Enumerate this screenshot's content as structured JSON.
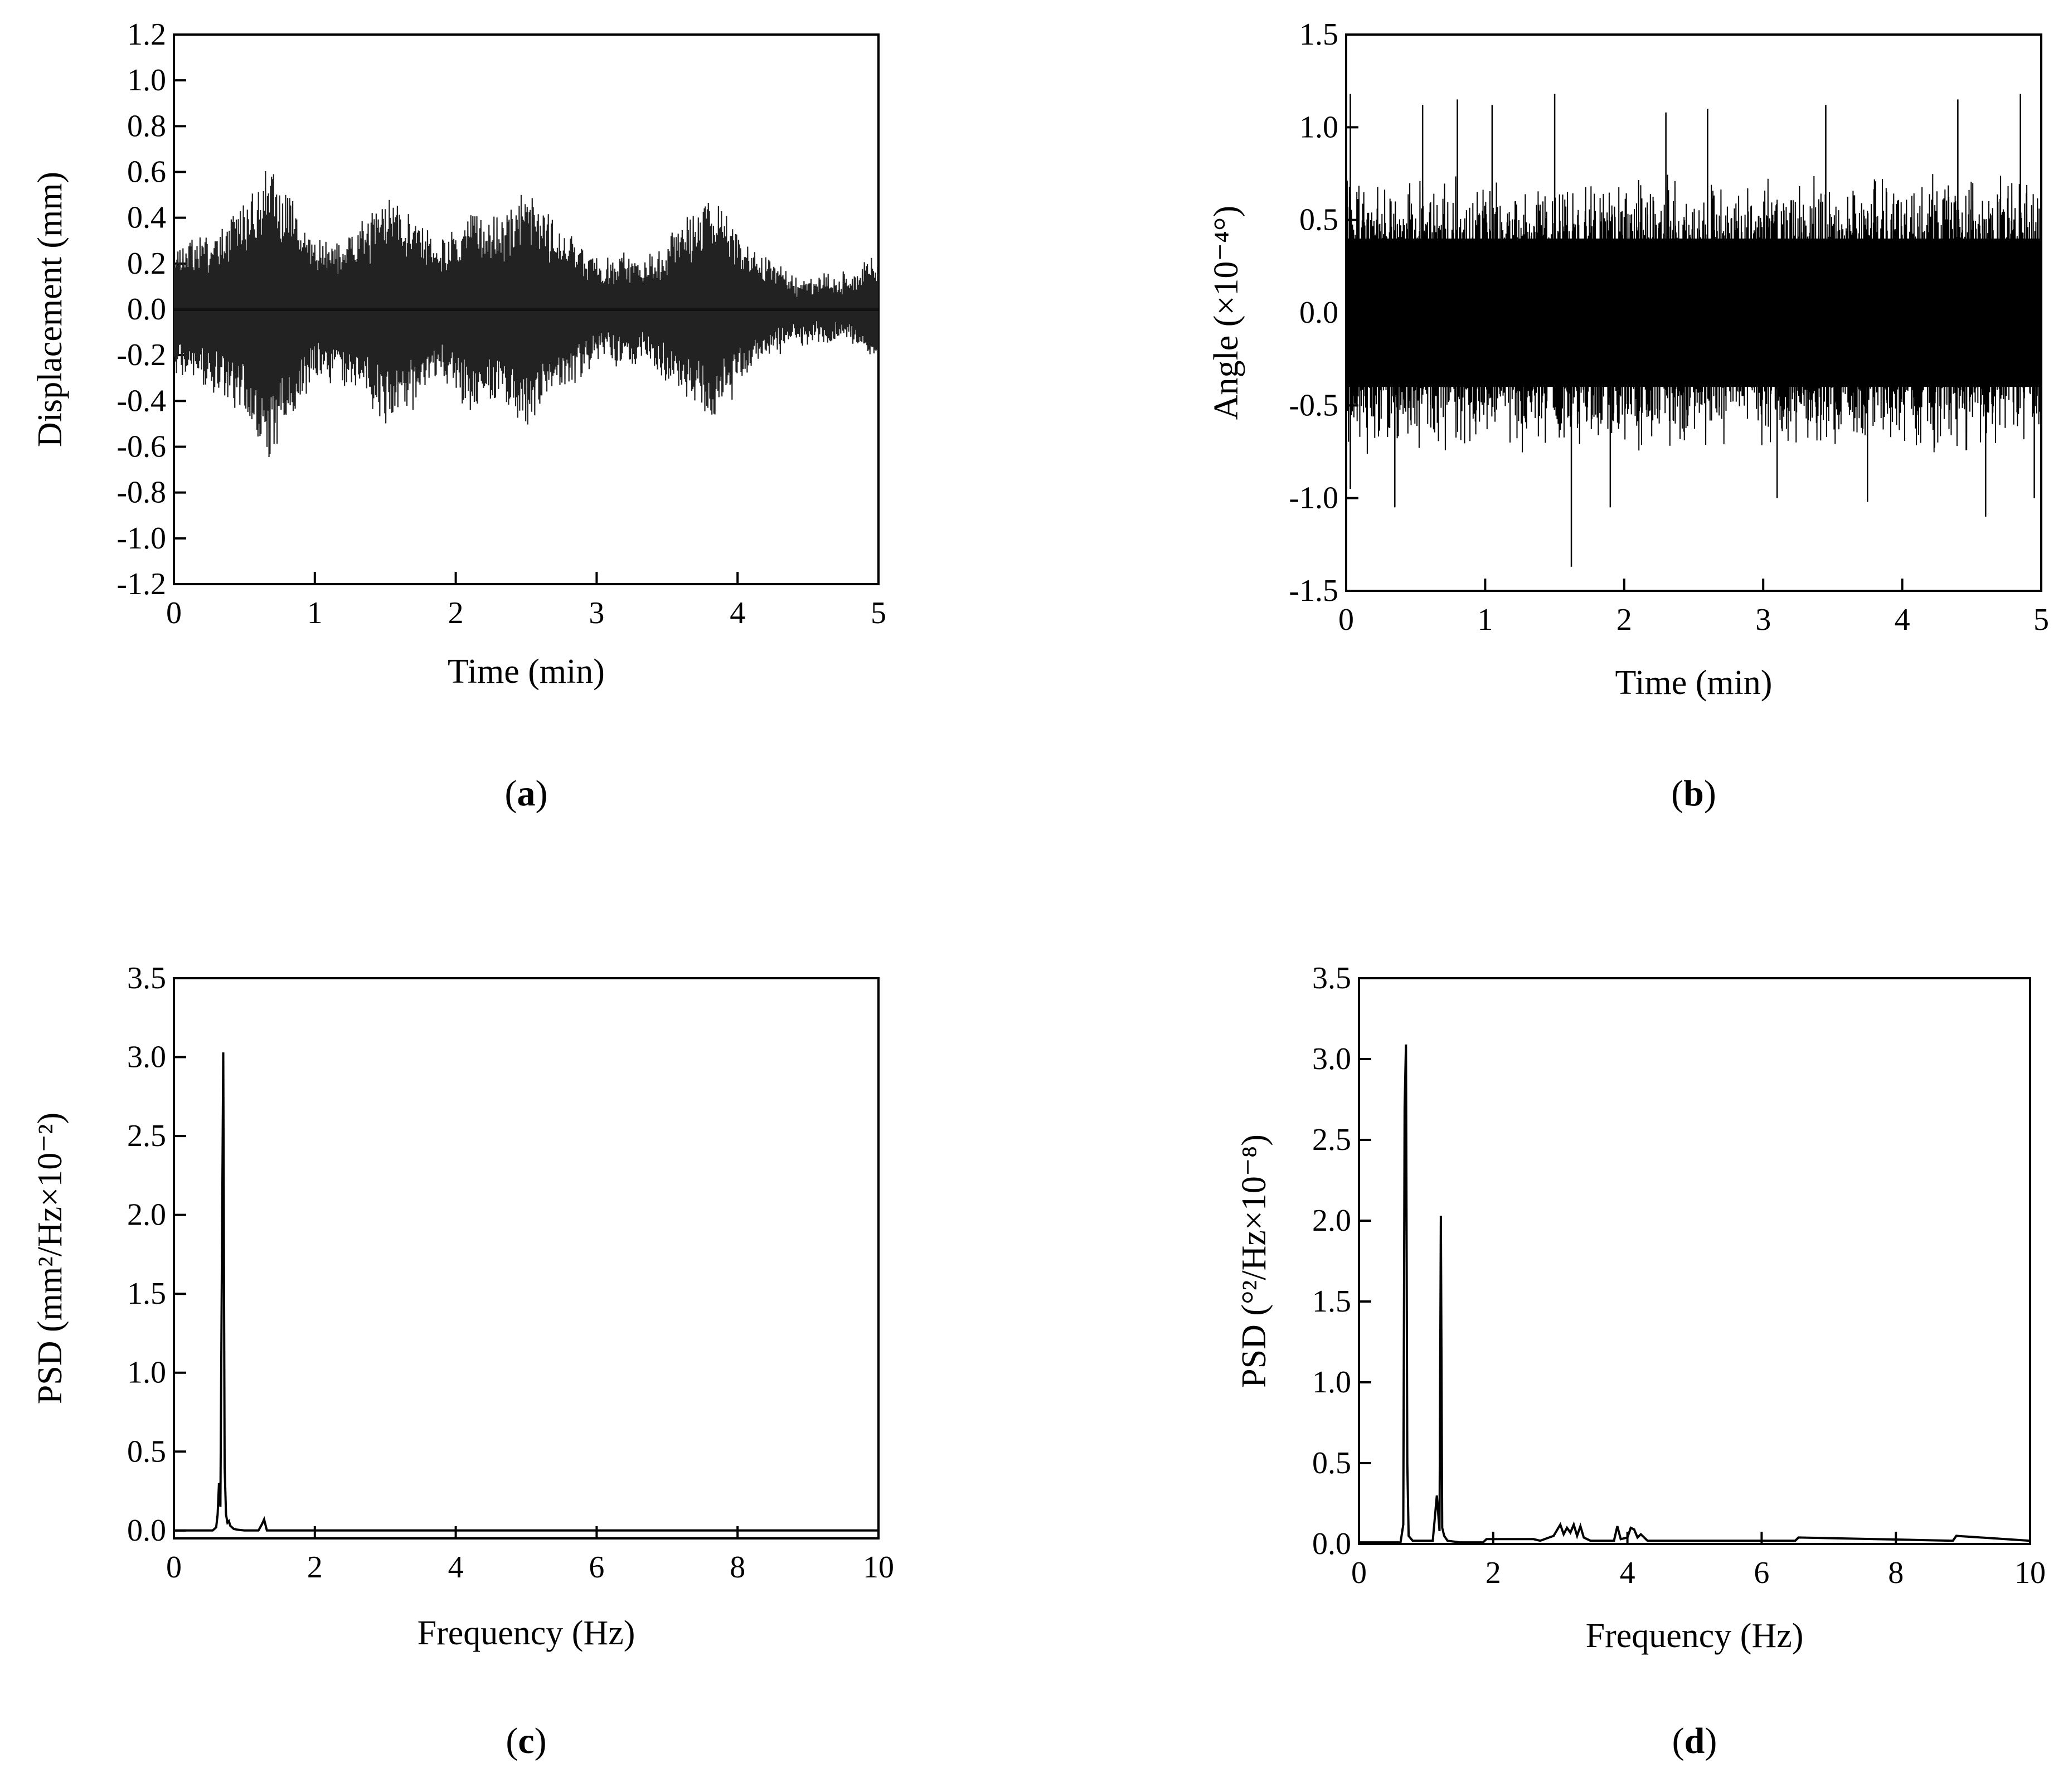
{
  "chart_data": [
    {
      "id": "a",
      "panel_label": "a",
      "type": "line",
      "xlabel": "Time (min)",
      "ylabel": "Displacement (mm)",
      "xlim": [
        0,
        5
      ],
      "ylim": [
        -1.2,
        1.2
      ],
      "xticks": [
        "0",
        "1",
        "2",
        "3",
        "4",
        "5"
      ],
      "yticks": [
        "-1.2",
        "-1.0",
        "-0.8",
        "-0.6",
        "-0.4",
        "-0.2",
        "0.0",
        "0.2",
        "0.4",
        "0.6",
        "0.8",
        "1.0",
        "1.2"
      ],
      "grid": false,
      "signal": "oscillation",
      "envelope": [
        [
          0.0,
          0.28
        ],
        [
          0.2,
          0.32
        ],
        [
          0.35,
          0.38
        ],
        [
          0.5,
          0.45
        ],
        [
          0.6,
          0.6
        ],
        [
          0.7,
          0.64
        ],
        [
          0.8,
          0.5
        ],
        [
          0.9,
          0.4
        ],
        [
          1.0,
          0.3
        ],
        [
          1.15,
          0.3
        ],
        [
          1.3,
          0.35
        ],
        [
          1.45,
          0.45
        ],
        [
          1.55,
          0.52
        ],
        [
          1.7,
          0.42
        ],
        [
          1.85,
          0.3
        ],
        [
          2.0,
          0.35
        ],
        [
          2.1,
          0.44
        ],
        [
          2.2,
          0.42
        ],
        [
          2.35,
          0.38
        ],
        [
          2.5,
          0.54
        ],
        [
          2.6,
          0.45
        ],
        [
          2.75,
          0.35
        ],
        [
          2.9,
          0.28
        ],
        [
          3.05,
          0.2
        ],
        [
          3.2,
          0.25
        ],
        [
          3.35,
          0.2
        ],
        [
          3.5,
          0.3
        ],
        [
          3.65,
          0.4
        ],
        [
          3.8,
          0.49
        ],
        [
          3.9,
          0.42
        ],
        [
          4.05,
          0.3
        ],
        [
          4.25,
          0.2
        ],
        [
          4.4,
          0.14
        ],
        [
          4.6,
          0.13
        ],
        [
          4.8,
          0.15
        ],
        [
          5.0,
          0.24
        ]
      ]
    },
    {
      "id": "b",
      "panel_label": "b",
      "type": "line",
      "xlabel": "Time (min)",
      "ylabel": "Angle (×10⁻⁴°)",
      "xlim": [
        0,
        5
      ],
      "ylim": [
        -1.5,
        1.5
      ],
      "xticks": [
        "0",
        "1",
        "2",
        "3",
        "4",
        "5"
      ],
      "yticks": [
        "-1.5",
        "-1.0",
        "-0.5",
        "0.0",
        "0.5",
        "1.0",
        "1.5"
      ],
      "grid": false,
      "signal": "noise",
      "band": 0.55,
      "spikes": [
        [
          0.03,
          1.18
        ],
        [
          0.03,
          -0.95
        ],
        [
          0.35,
          -1.05
        ],
        [
          0.55,
          1.12
        ],
        [
          0.8,
          1.15
        ],
        [
          1.05,
          1.12
        ],
        [
          1.5,
          1.18
        ],
        [
          1.62,
          -1.37
        ],
        [
          1.9,
          -1.05
        ],
        [
          2.3,
          1.08
        ],
        [
          2.6,
          1.1
        ],
        [
          3.1,
          -1.0
        ],
        [
          3.45,
          1.12
        ],
        [
          3.75,
          -1.02
        ],
        [
          4.4,
          1.15
        ],
        [
          4.6,
          -1.1
        ],
        [
          4.85,
          1.18
        ],
        [
          4.95,
          -1.0
        ]
      ]
    },
    {
      "id": "c",
      "panel_label": "c",
      "type": "line",
      "xlabel": "Frequency (Hz)",
      "ylabel": "PSD (mm²/Hz×10⁻²)",
      "xlim": [
        0,
        10
      ],
      "ylim": [
        -0.05,
        3.5
      ],
      "xticks": [
        "0",
        "2",
        "4",
        "6",
        "8",
        "10"
      ],
      "yticks": [
        "0.0",
        "0.5",
        "1.0",
        "1.5",
        "2.0",
        "2.5",
        "3.0",
        "3.5"
      ],
      "grid": false,
      "x": [
        0,
        0.55,
        0.6,
        0.62,
        0.64,
        0.66,
        0.68,
        0.7,
        0.72,
        0.74,
        0.76,
        0.78,
        0.8,
        0.85,
        0.9,
        1.0,
        1.2,
        1.25,
        1.28,
        1.32,
        1.5,
        10
      ],
      "y": [
        0,
        0,
        0.02,
        0.1,
        0.3,
        0.15,
        1.65,
        3.03,
        0.4,
        0.1,
        0.05,
        0.06,
        0.03,
        0.01,
        0.005,
        0,
        0,
        0.04,
        0.07,
        0,
        0,
        0
      ]
    },
    {
      "id": "d",
      "panel_label": "d",
      "type": "line",
      "xlabel": "Frequency (Hz)",
      "ylabel": "PSD (°²/Hz×10⁻⁸)",
      "xlim": [
        0,
        10
      ],
      "ylim": [
        0,
        3.5
      ],
      "xticks": [
        "0",
        "2",
        "4",
        "6",
        "8",
        "10"
      ],
      "yticks": [
        "0.0",
        "0.5",
        "1.0",
        "1.5",
        "2.0",
        "2.5",
        "3.0",
        "3.5"
      ],
      "grid": false,
      "x": [
        0,
        0.62,
        0.66,
        0.68,
        0.7,
        0.72,
        0.74,
        0.8,
        1.1,
        1.16,
        1.2,
        1.22,
        1.24,
        1.27,
        1.32,
        1.5,
        1.85,
        1.9,
        2.6,
        2.7,
        2.9,
        3.0,
        3.05,
        3.1,
        3.15,
        3.2,
        3.25,
        3.3,
        3.35,
        3.45,
        3.8,
        3.85,
        3.9,
        4.0,
        4.05,
        4.1,
        4.15,
        4.2,
        4.3,
        5.0,
        6.5,
        6.55,
        8.85,
        8.9,
        10
      ],
      "y": [
        0.01,
        0.01,
        0.12,
        2.7,
        3.09,
        0.5,
        0.05,
        0.02,
        0.02,
        0.3,
        0.08,
        2.03,
        0.1,
        0.05,
        0.02,
        0.01,
        0.01,
        0.03,
        0.03,
        0.02,
        0.05,
        0.12,
        0.06,
        0.1,
        0.07,
        0.12,
        0.05,
        0.11,
        0.04,
        0.02,
        0.02,
        0.11,
        0.03,
        0.04,
        0.1,
        0.09,
        0.04,
        0.06,
        0.02,
        0.02,
        0.02,
        0.04,
        0.02,
        0.05,
        0.02
      ]
    }
  ]
}
